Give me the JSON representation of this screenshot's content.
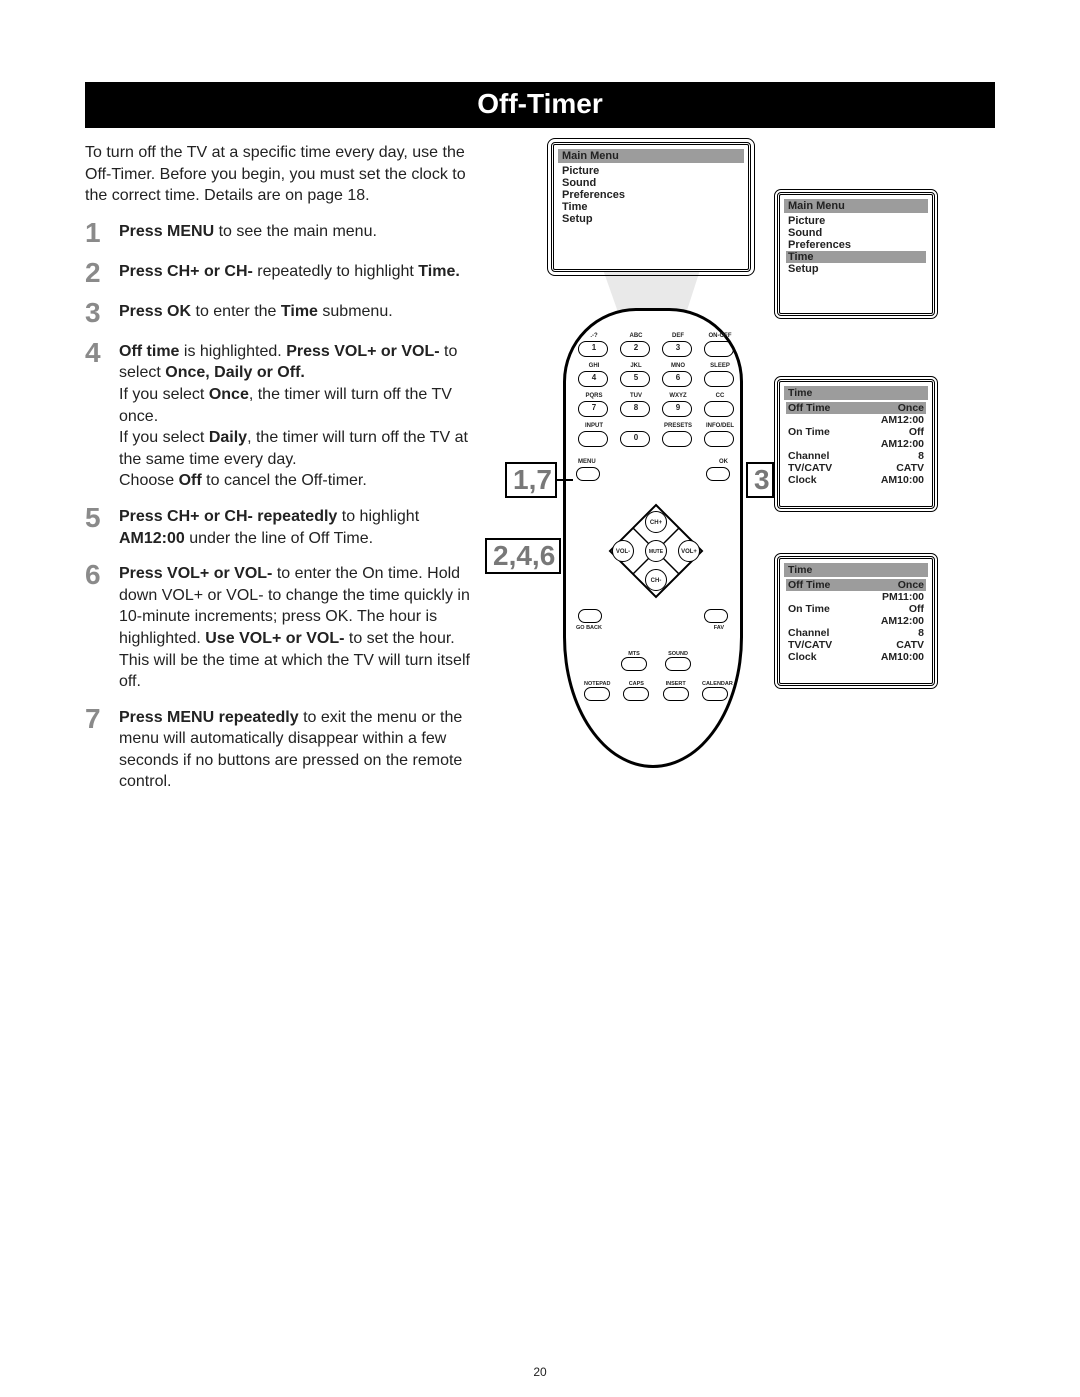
{
  "title": "Off-Timer",
  "intro": "To turn off the TV at a specific time every day, use the Off-Timer. Before you begin, you must set the clock to the correct time. Details are on page 18.",
  "steps": [
    {
      "n": "1",
      "html": "<b>Press MENU</b> to see the main menu."
    },
    {
      "n": "2",
      "html": "<b>Press CH+ or CH-</b> repeatedly to highlight <b>Time.</b>"
    },
    {
      "n": "3",
      "html": "<b>Press OK</b> to enter the <b>Time</b> submenu."
    },
    {
      "n": "4",
      "html": "<b>Off time</b> is highlighted. <b>Press VOL+ or VOL-</b> to select <b>Once, Daily or Off.</b><br>If you select <b>Once</b>, the timer will turn off the TV once.<br>If you select <b>Daily</b>, the timer will turn off the TV at the same time every day.<br>Choose <b>Off</b> to cancel the Off-timer."
    },
    {
      "n": "5",
      "html": "<b>Press CH+ or CH- repeatedly</b> to highlight <b>AM12:00</b> under the line of Off Time."
    },
    {
      "n": "6",
      "html": "<b>Press VOL+ or VOL-</b> to enter the On time. Hold down VOL+ or VOL- to change the time quickly in 10-minute increments; press OK. The hour is highlighted. <b>Use VOL+ or VOL-</b> to set the hour. This will be the time at which the TV will turn itself off."
    },
    {
      "n": "7",
      "html": "<b>Press MENU repeatedly</b> to exit the menu or the menu will automatically disappear within a few seconds if no buttons are pressed on the remote control."
    }
  ],
  "callouts": {
    "c1": "1,7",
    "c2": "2,4,6",
    "c3": "3"
  },
  "remote": {
    "row1": [
      {
        "top": ".-?",
        "in": "1"
      },
      {
        "top": "ABC",
        "in": "2"
      },
      {
        "top": "DEF",
        "in": "3"
      },
      {
        "top": "ON-OFF",
        "in": ""
      }
    ],
    "row2": [
      {
        "top": "GHI",
        "in": "4"
      },
      {
        "top": "JKL",
        "in": "5"
      },
      {
        "top": "MNO",
        "in": "6"
      },
      {
        "top": "SLEEP",
        "in": ""
      }
    ],
    "row3": [
      {
        "top": "PQRS",
        "in": "7"
      },
      {
        "top": "TUV",
        "in": "8"
      },
      {
        "top": "WXYZ",
        "in": "9"
      },
      {
        "top": "CC",
        "in": ""
      }
    ],
    "row4": [
      {
        "top": "INPUT",
        "in": ""
      },
      {
        "top": "",
        "in": "0"
      },
      {
        "top": "PRESETS",
        "in": ""
      },
      {
        "top": "INFO/DEL",
        "in": ""
      }
    ],
    "menu_lbl": "MENU",
    "ok_lbl": "OK",
    "dpad": {
      "up": "CH+",
      "down": "CH-",
      "left": "VOL-",
      "right": "VOL+",
      "center": "MUTE"
    },
    "goback": "GO BACK",
    "fav": "FAV",
    "bot1": [
      "MTS",
      "SOUND"
    ],
    "bot2": [
      "NOTEPAD",
      "CAPS",
      "INSERT",
      "CALENDAR"
    ]
  },
  "screens": {
    "main1": {
      "title": "Main Menu",
      "items": [
        "Picture",
        "Sound",
        "Preferences",
        "Time",
        "Setup"
      ],
      "selected": null
    },
    "main2": {
      "title": "Main Menu",
      "items": [
        "Picture",
        "Sound",
        "Preferences",
        "Time",
        "Setup"
      ],
      "selected": 3
    },
    "time1": {
      "title": "Time",
      "rows": [
        {
          "l": "Off Time",
          "r": "Once",
          "sub": "AM12:00",
          "sel": true
        },
        {
          "l": "On Time",
          "r": "Off",
          "sub": "AM12:00"
        },
        {
          "l": "Channel",
          "r": "8"
        },
        {
          "l": "TV/CATV",
          "r": "CATV"
        },
        {
          "l": "Clock",
          "r": "AM10:00"
        }
      ]
    },
    "time2": {
      "title": "Time",
      "rows": [
        {
          "l": "Off Time",
          "r": "Once",
          "sub": "PM11:00",
          "sel": true
        },
        {
          "l": "On Time",
          "r": "Off",
          "sub": "AM12:00"
        },
        {
          "l": "Channel",
          "r": "8"
        },
        {
          "l": "TV/CATV",
          "r": "CATV"
        },
        {
          "l": "Clock",
          "r": "AM10:00"
        }
      ]
    }
  },
  "page_num": "20",
  "colors": {
    "num_gray": "#8a8a8a",
    "menu_gray": "#9c9c9c"
  }
}
